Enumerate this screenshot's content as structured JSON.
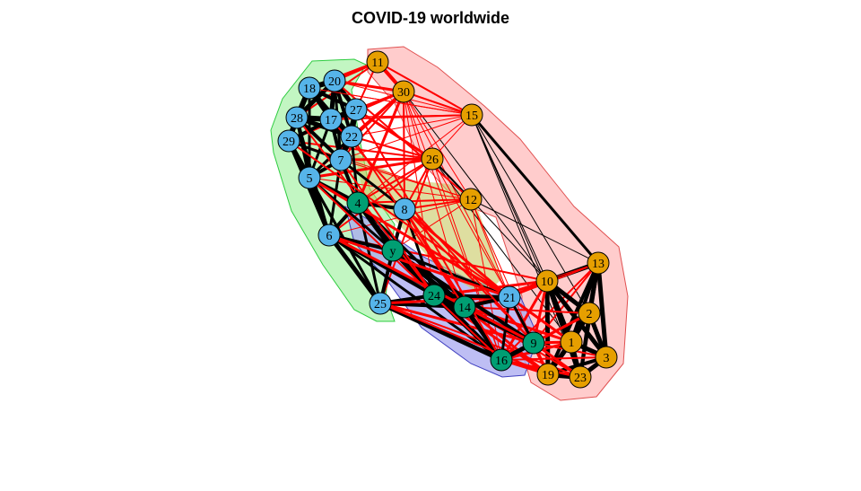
{
  "title": "COVID-19 worldwide",
  "colors": {
    "orange_group": "#E69F00",
    "blue_group": "#56B4E9",
    "green_group": "#009E73",
    "edge_positive": "#000000",
    "edge_negative": "#FF0000",
    "hull_green": "#90EE90",
    "hull_red": "#FFB6B6",
    "hull_blue": "#A8A8F0",
    "hull_yellow": "#C8C860"
  },
  "nodes": [
    {
      "label": "11",
      "group": "orange"
    },
    {
      "label": "30",
      "group": "orange"
    },
    {
      "label": "15",
      "group": "orange"
    },
    {
      "label": "26",
      "group": "orange"
    },
    {
      "label": "12",
      "group": "orange"
    },
    {
      "label": "13",
      "group": "orange"
    },
    {
      "label": "10",
      "group": "orange"
    },
    {
      "label": "2",
      "group": "orange"
    },
    {
      "label": "1",
      "group": "orange"
    },
    {
      "label": "3",
      "group": "orange"
    },
    {
      "label": "19",
      "group": "orange"
    },
    {
      "label": "23",
      "group": "orange"
    },
    {
      "label": "18",
      "group": "blue"
    },
    {
      "label": "20",
      "group": "blue"
    },
    {
      "label": "28",
      "group": "blue"
    },
    {
      "label": "17",
      "group": "blue"
    },
    {
      "label": "27",
      "group": "blue"
    },
    {
      "label": "22",
      "group": "blue"
    },
    {
      "label": "29",
      "group": "blue"
    },
    {
      "label": "7",
      "group": "blue"
    },
    {
      "label": "5",
      "group": "blue"
    },
    {
      "label": "8",
      "group": "blue"
    },
    {
      "label": "6",
      "group": "blue"
    },
    {
      "label": "25",
      "group": "blue"
    },
    {
      "label": "21",
      "group": "blue"
    },
    {
      "label": "4",
      "group": "green"
    },
    {
      "label": "y",
      "group": "green"
    },
    {
      "label": "24",
      "group": "green"
    },
    {
      "label": "14",
      "group": "green"
    },
    {
      "label": "9",
      "group": "green"
    },
    {
      "label": "16",
      "group": "green"
    }
  ],
  "edges": [
    [
      "11",
      "30",
      "neg",
      4
    ],
    [
      "11",
      "15",
      "neg",
      2
    ],
    [
      "11",
      "20",
      "neg",
      3
    ],
    [
      "11",
      "18",
      "neg",
      3
    ],
    [
      "11",
      "27",
      "neg",
      2
    ],
    [
      "11",
      "28",
      "neg",
      2
    ],
    [
      "30",
      "15",
      "neg",
      2
    ],
    [
      "30",
      "20",
      "neg",
      3
    ],
    [
      "30",
      "27",
      "neg",
      3
    ],
    [
      "30",
      "17",
      "neg",
      2
    ],
    [
      "30",
      "22",
      "neg",
      3
    ],
    [
      "30",
      "7",
      "neg",
      2
    ],
    [
      "30",
      "29",
      "neg",
      2
    ],
    [
      "30",
      "5",
      "neg",
      2
    ],
    [
      "30",
      "4",
      "neg",
      3
    ],
    [
      "30",
      "8",
      "neg",
      2
    ],
    [
      "30",
      "12",
      "neg",
      1
    ],
    [
      "30",
      "24",
      "neg",
      1
    ],
    [
      "30",
      "14",
      "neg",
      1
    ],
    [
      "30",
      "9",
      "neg",
      1
    ],
    [
      "30",
      "10",
      "pos",
      1
    ],
    [
      "30",
      "16",
      "neg",
      1
    ],
    [
      "15",
      "26",
      "neg",
      1
    ],
    [
      "15",
      "13",
      "pos",
      3
    ],
    [
      "15",
      "10",
      "pos",
      1
    ],
    [
      "15",
      "2",
      "pos",
      1
    ],
    [
      "15",
      "1",
      "pos",
      1
    ],
    [
      "15",
      "23",
      "pos",
      1
    ],
    [
      "15",
      "18",
      "neg",
      1
    ],
    [
      "15",
      "20",
      "neg",
      1
    ],
    [
      "15",
      "17",
      "neg",
      2
    ],
    [
      "15",
      "7",
      "neg",
      1
    ],
    [
      "15",
      "28",
      "neg",
      1
    ],
    [
      "15",
      "22",
      "neg",
      1
    ],
    [
      "15",
      "4",
      "neg",
      1
    ],
    [
      "26",
      "27",
      "neg",
      3
    ],
    [
      "26",
      "29",
      "neg",
      2
    ],
    [
      "26",
      "7",
      "neg",
      3
    ],
    [
      "26",
      "5",
      "neg",
      3
    ],
    [
      "26",
      "6",
      "neg",
      2
    ],
    [
      "26",
      "4",
      "neg",
      2
    ],
    [
      "26",
      "8",
      "neg",
      2
    ],
    [
      "26",
      "12",
      "pos",
      2
    ],
    [
      "26",
      "25",
      "neg",
      2
    ],
    [
      "26",
      "21",
      "neg",
      1
    ],
    [
      "26",
      "1",
      "pos",
      1
    ],
    [
      "26",
      "16",
      "neg",
      1
    ],
    [
      "26",
      "22",
      "neg",
      2
    ],
    [
      "12",
      "4",
      "neg",
      2
    ],
    [
      "12",
      "5",
      "neg",
      1
    ],
    [
      "12",
      "7",
      "neg",
      1
    ],
    [
      "12",
      "29",
      "neg",
      1
    ],
    [
      "12",
      "8",
      "neg",
      2
    ],
    [
      "12",
      "6",
      "neg",
      1
    ],
    [
      "12",
      "y",
      "neg",
      1
    ],
    [
      "12",
      "10",
      "pos",
      1
    ],
    [
      "12",
      "16",
      "neg",
      1
    ],
    [
      "12",
      "9",
      "neg",
      1
    ],
    [
      "12",
      "21",
      "neg",
      1
    ],
    [
      "12",
      "13",
      "pos",
      1
    ],
    [
      "13",
      "10",
      "pos",
      5
    ],
    [
      "13",
      "2",
      "pos",
      5
    ],
    [
      "13",
      "1",
      "pos",
      4
    ],
    [
      "13",
      "3",
      "pos",
      5
    ],
    [
      "13",
      "23",
      "pos",
      4
    ],
    [
      "13",
      "19",
      "pos",
      4
    ],
    [
      "13",
      "21",
      "neg",
      2
    ],
    [
      "13",
      "16",
      "neg",
      2
    ],
    [
      "13",
      "9",
      "neg",
      2
    ],
    [
      "13",
      "14",
      "neg",
      1
    ],
    [
      "10",
      "2",
      "pos",
      5
    ],
    [
      "10",
      "1",
      "pos",
      5
    ],
    [
      "10",
      "3",
      "pos",
      5
    ],
    [
      "10",
      "23",
      "pos",
      5
    ],
    [
      "10",
      "19",
      "pos",
      5
    ],
    [
      "10",
      "21",
      "neg",
      3
    ],
    [
      "10",
      "24",
      "neg",
      3
    ],
    [
      "10",
      "14",
      "neg",
      3
    ],
    [
      "10",
      "9",
      "neg",
      3
    ],
    [
      "10",
      "16",
      "neg",
      3
    ],
    [
      "10",
      "25",
      "neg",
      2
    ],
    [
      "10",
      "6",
      "neg",
      2
    ],
    [
      "2",
      "1",
      "pos",
      5
    ],
    [
      "2",
      "3",
      "pos",
      5
    ],
    [
      "2",
      "23",
      "pos",
      4
    ],
    [
      "2",
      "19",
      "pos",
      4
    ],
    [
      "2",
      "9",
      "neg",
      3
    ],
    [
      "2",
      "16",
      "neg",
      3
    ],
    [
      "2",
      "14",
      "neg",
      2
    ],
    [
      "1",
      "3",
      "pos",
      5
    ],
    [
      "1",
      "23",
      "pos",
      5
    ],
    [
      "1",
      "19",
      "pos",
      5
    ],
    [
      "1",
      "9",
      "neg",
      3
    ],
    [
      "1",
      "16",
      "neg",
      3
    ],
    [
      "1",
      "14",
      "neg",
      3
    ],
    [
      "1",
      "24",
      "neg",
      2
    ],
    [
      "1",
      "21",
      "neg",
      3
    ],
    [
      "3",
      "23",
      "pos",
      5
    ],
    [
      "3",
      "19",
      "pos",
      4
    ],
    [
      "3",
      "16",
      "neg",
      2
    ],
    [
      "3",
      "9",
      "neg",
      2
    ],
    [
      "23",
      "19",
      "pos",
      6
    ],
    [
      "23",
      "16",
      "neg",
      3
    ],
    [
      "23",
      "9",
      "neg",
      3
    ],
    [
      "23",
      "14",
      "neg",
      2
    ],
    [
      "19",
      "16",
      "neg",
      3
    ],
    [
      "19",
      "9",
      "neg",
      3
    ],
    [
      "19",
      "14",
      "neg",
      3
    ],
    [
      "19",
      "24",
      "neg",
      3
    ],
    [
      "19",
      "21",
      "neg",
      3
    ],
    [
      "19",
      "25",
      "neg",
      2
    ],
    [
      "18",
      "20",
      "pos",
      6
    ],
    [
      "18",
      "28",
      "pos",
      6
    ],
    [
      "18",
      "17",
      "pos",
      5
    ],
    [
      "18",
      "27",
      "pos",
      4
    ],
    [
      "18",
      "29",
      "pos",
      4
    ],
    [
      "18",
      "22",
      "pos",
      4
    ],
    [
      "18",
      "5",
      "pos",
      3
    ],
    [
      "20",
      "28",
      "pos",
      5
    ],
    [
      "20",
      "17",
      "pos",
      5
    ],
    [
      "20",
      "27",
      "pos",
      5
    ],
    [
      "20",
      "22",
      "pos",
      4
    ],
    [
      "20",
      "7",
      "pos",
      3
    ],
    [
      "28",
      "17",
      "pos",
      6
    ],
    [
      "28",
      "29",
      "pos",
      6
    ],
    [
      "28",
      "22",
      "pos",
      5
    ],
    [
      "28",
      "5",
      "pos",
      4
    ],
    [
      "28",
      "7",
      "pos",
      4
    ],
    [
      "28",
      "6",
      "pos",
      3
    ],
    [
      "17",
      "27",
      "pos",
      6
    ],
    [
      "17",
      "22",
      "pos",
      6
    ],
    [
      "17",
      "29",
      "pos",
      4
    ],
    [
      "17",
      "7",
      "pos",
      4
    ],
    [
      "17",
      "5",
      "pos",
      3
    ],
    [
      "27",
      "22",
      "pos",
      5
    ],
    [
      "27",
      "7",
      "pos",
      4
    ],
    [
      "29",
      "5",
      "pos",
      5
    ],
    [
      "29",
      "7",
      "pos",
      3
    ],
    [
      "29",
      "6",
      "pos",
      4
    ],
    [
      "29",
      "25",
      "pos",
      3
    ],
    [
      "22",
      "7",
      "pos",
      5
    ],
    [
      "22",
      "4",
      "pos",
      3
    ],
    [
      "22",
      "5",
      "pos",
      3
    ],
    [
      "7",
      "5",
      "pos",
      4
    ],
    [
      "7",
      "4",
      "pos",
      4
    ],
    [
      "7",
      "8",
      "pos",
      3
    ],
    [
      "7",
      "6",
      "pos",
      3
    ],
    [
      "5",
      "6",
      "pos",
      5
    ],
    [
      "5",
      "4",
      "pos",
      4
    ],
    [
      "5",
      "25",
      "pos",
      3
    ],
    [
      "5",
      "y",
      "pos",
      3
    ],
    [
      "4",
      "8",
      "pos",
      4
    ],
    [
      "4",
      "6",
      "pos",
      4
    ],
    [
      "4",
      "y",
      "pos",
      5
    ],
    [
      "4",
      "24",
      "pos",
      3
    ],
    [
      "4",
      "25",
      "pos",
      3
    ],
    [
      "4",
      "14",
      "pos",
      3
    ],
    [
      "8",
      "y",
      "pos",
      4
    ],
    [
      "8",
      "24",
      "pos",
      3
    ],
    [
      "8",
      "21",
      "neg",
      3
    ],
    [
      "8",
      "14",
      "neg",
      3
    ],
    [
      "8",
      "16",
      "neg",
      2
    ],
    [
      "8",
      "9",
      "neg",
      2
    ],
    [
      "6",
      "y",
      "pos",
      4
    ],
    [
      "6",
      "25",
      "pos",
      5
    ],
    [
      "6",
      "24",
      "pos",
      4
    ],
    [
      "6",
      "14",
      "pos",
      3
    ],
    [
      "6",
      "16",
      "pos",
      3
    ],
    [
      "y",
      "24",
      "pos",
      5
    ],
    [
      "y",
      "14",
      "pos",
      5
    ],
    [
      "y",
      "25",
      "pos",
      4
    ],
    [
      "y",
      "16",
      "pos",
      5
    ],
    [
      "y",
      "9",
      "pos",
      4
    ],
    [
      "y",
      "21",
      "pos",
      3
    ],
    [
      "25",
      "24",
      "pos",
      4
    ],
    [
      "25",
      "14",
      "pos",
      4
    ],
    [
      "25",
      "16",
      "pos",
      5
    ],
    [
      "25",
      "21",
      "neg",
      3
    ],
    [
      "25",
      "9",
      "neg",
      3
    ],
    [
      "25",
      "23",
      "neg",
      2
    ],
    [
      "24",
      "14",
      "pos",
      6
    ],
    [
      "24",
      "21",
      "pos",
      4
    ],
    [
      "24",
      "16",
      "pos",
      5
    ],
    [
      "24",
      "9",
      "pos",
      4
    ],
    [
      "14",
      "21",
      "pos",
      4
    ],
    [
      "14",
      "16",
      "pos",
      5
    ],
    [
      "14",
      "9",
      "pos",
      4
    ],
    [
      "21",
      "9",
      "pos",
      3
    ],
    [
      "21",
      "16",
      "pos",
      3
    ],
    [
      "9",
      "16",
      "pos",
      5
    ],
    [
      "5",
      "21",
      "neg",
      3
    ],
    [
      "6",
      "21",
      "neg",
      3
    ],
    [
      "29",
      "21",
      "neg",
      2
    ],
    [
      "7",
      "24",
      "neg",
      2
    ],
    [
      "22",
      "14",
      "neg",
      2
    ],
    [
      "27",
      "16",
      "neg",
      2
    ],
    [
      "17",
      "9",
      "neg",
      2
    ],
    [
      "28",
      "24",
      "neg",
      2
    ],
    [
      "20",
      "12",
      "neg",
      2
    ],
    [
      "18",
      "15",
      "neg",
      1
    ],
    [
      "25",
      "19",
      "neg",
      2
    ],
    [
      "6",
      "9",
      "neg",
      3
    ],
    [
      "5",
      "16",
      "neg",
      2
    ]
  ]
}
